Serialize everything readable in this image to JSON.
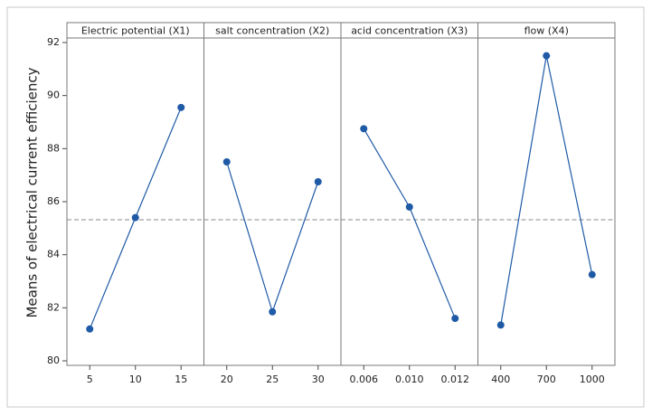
{
  "chart_data": [
    {
      "type": "line",
      "title": "Electric potential (X1)",
      "ylabel": "Means of electrical current efficiency",
      "categories": [
        "5",
        "10",
        "15"
      ],
      "values": [
        81.2,
        85.4,
        89.55
      ],
      "color": "#1f5aa6",
      "ylim": [
        79.83,
        92.17
      ],
      "yticks": [
        80,
        82,
        84,
        86,
        88,
        90,
        92
      ],
      "hline": 85.32
    },
    {
      "type": "line",
      "title": "salt concentration (X2)",
      "categories": [
        "20",
        "25",
        "30"
      ],
      "values": [
        87.5,
        81.85,
        86.75
      ],
      "color": "#1f5aa6"
    },
    {
      "type": "line",
      "title": "acid concentration (X3)",
      "categories": [
        "0.006",
        "0.010",
        "0.012"
      ],
      "values": [
        88.75,
        85.8,
        81.6
      ],
      "color": "#1f5aa6"
    },
    {
      "type": "line",
      "title": "flow (X4)",
      "categories": [
        "400",
        "700",
        "1000"
      ],
      "values": [
        81.35,
        91.5,
        83.25
      ],
      "color": "#1f5aa6"
    }
  ]
}
